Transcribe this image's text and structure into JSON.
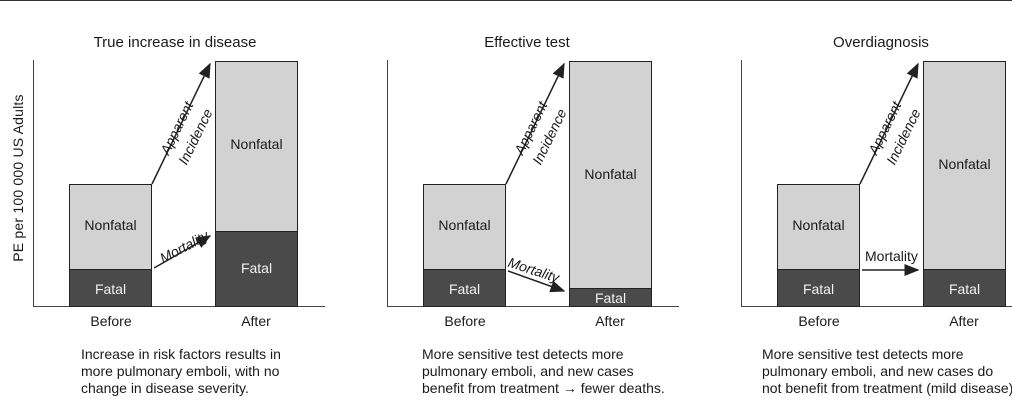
{
  "y_axis_label": "PE per 100 000 US Adults",
  "labels": {
    "nonfatal": "Nonfatal",
    "fatal": "Fatal",
    "before": "Before",
    "after": "After",
    "apparent_incidence_line1": "Apparent",
    "apparent_incidence_line2": "Incidence",
    "mortality": "Mortality"
  },
  "panels": [
    {
      "title": "True increase in disease",
      "caption": [
        "Increase in risk factors results in",
        "more pulmonary emboli, with no",
        "change in disease severity."
      ],
      "before": {
        "fatal": 40,
        "nonfatal": 85
      },
      "after": {
        "fatal": 78,
        "nonfatal": 170
      }
    },
    {
      "title": "Effective test",
      "caption": [
        "More sensitive test detects more",
        "pulmonary emboli, and new cases",
        "benefit from treatment → fewer deaths."
      ],
      "before": {
        "fatal": 40,
        "nonfatal": 85
      },
      "after": {
        "fatal": 20,
        "nonfatal": 228
      }
    },
    {
      "title": "Overdiagnosis",
      "caption": [
        "More sensitive test detects more",
        "pulmonary emboli, and new cases do",
        "not benefit from treatment (mild disease)."
      ],
      "before": {
        "fatal": 40,
        "nonfatal": 85
      },
      "after": {
        "fatal": 40,
        "nonfatal": 208
      }
    }
  ],
  "colors": {
    "nonfatal": "#d2d2d2",
    "fatal": "#4a4a4a"
  }
}
